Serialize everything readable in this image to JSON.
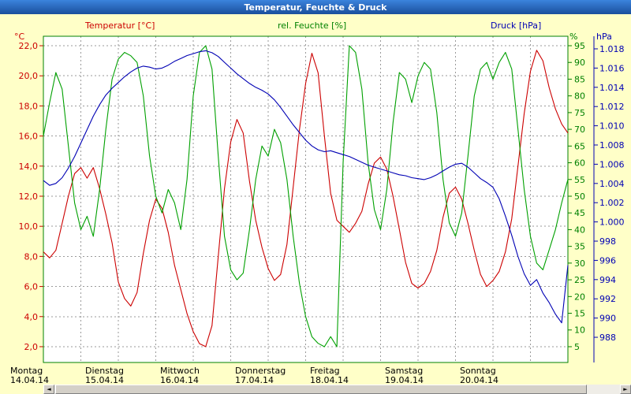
{
  "window": {
    "title": "Temperatur, Feuchte & Druck"
  },
  "scrollbar": {
    "left_glyph": "◄",
    "right_glyph": "►"
  },
  "chart_data": {
    "type": "line",
    "title": "Temperatur, Feuchte & Druck",
    "grid": "dashed",
    "x": {
      "step_hours": 2,
      "points_per_day": 12,
      "days": [
        {
          "day": "Montag",
          "date": "14.04.14"
        },
        {
          "day": "Dienstag",
          "date": "15.04.14"
        },
        {
          "day": "Mittwoch",
          "date": "16.04.14"
        },
        {
          "day": "Donnerstag",
          "date": "17.04.14"
        },
        {
          "day": "Freitag",
          "date": "18.04.14"
        },
        {
          "day": "Samstag",
          "date": "19.04.14"
        },
        {
          "day": "Sonntag",
          "date": "20.04.14"
        }
      ]
    },
    "axes": {
      "temperature": {
        "title": "Temperatur [°C]",
        "unit": "°C",
        "color": "#cc0000",
        "side": "left",
        "tick_labels": [
          "22,0",
          "20,0",
          "18,0",
          "16,0",
          "14,0",
          "12,0",
          "10,0",
          "8,0",
          "6,0",
          "4,0",
          "2,0"
        ],
        "tick_values": [
          22,
          20,
          18,
          16,
          14,
          12,
          10,
          8,
          6,
          4,
          2
        ],
        "range_top": 22.63,
        "range_bottom": 0.95
      },
      "humidity": {
        "title": "rel. Feuchte [%]",
        "unit": "%",
        "color": "#008000",
        "side": "right",
        "tick_labels": [
          "95",
          "90",
          "85",
          "80",
          "75",
          "70",
          "65",
          "60",
          "55",
          "50",
          "45",
          "40",
          "35",
          "30",
          "25",
          "20",
          "15",
          "10",
          "5"
        ],
        "tick_values": [
          95,
          90,
          85,
          80,
          75,
          70,
          65,
          60,
          55,
          50,
          45,
          40,
          35,
          30,
          25,
          20,
          15,
          10,
          5
        ],
        "range_top": 97.83,
        "range_bottom": 0.28
      },
      "pressure": {
        "title": "Druck [hPa]",
        "unit": "hPa",
        "color": "#0000b4",
        "side": "far-right",
        "tick_labels": [
          "1.018",
          "1.016",
          "1.014",
          "1.012",
          "1.010",
          "1.008",
          "1.006",
          "1.004",
          "1.002",
          "1.000",
          "998",
          "996",
          "994",
          "992",
          "990",
          "988"
        ],
        "tick_values": [
          1018,
          1016,
          1014,
          1012,
          1010,
          1008,
          1006,
          1004,
          1002,
          1000,
          998,
          996,
          994,
          992,
          990,
          988
        ],
        "range_top": 1019.31,
        "range_bottom": 985.38
      }
    },
    "series": [
      {
        "name": "Temperatur [°C]",
        "axis": "temperature",
        "color": "#cc0000",
        "values": [
          8.3,
          7.9,
          8.4,
          10.2,
          12.0,
          13.5,
          13.9,
          13.2,
          13.9,
          12.5,
          10.8,
          8.9,
          6.3,
          5.2,
          4.7,
          5.6,
          8.2,
          10.4,
          11.8,
          11.2,
          9.6,
          7.4,
          5.8,
          4.2,
          3.0,
          2.2,
          2.0,
          3.4,
          8.0,
          12.5,
          15.6,
          17.1,
          16.2,
          13.0,
          10.4,
          8.6,
          7.2,
          6.4,
          6.8,
          8.8,
          12.6,
          16.4,
          19.5,
          21.5,
          20.2,
          16.0,
          12.2,
          10.4,
          10.0,
          9.6,
          10.2,
          11.0,
          12.8,
          14.2,
          14.6,
          13.8,
          12.0,
          9.8,
          7.6,
          6.2,
          5.9,
          6.2,
          7.0,
          8.4,
          10.6,
          12.2,
          12.6,
          11.8,
          10.2,
          8.4,
          6.8,
          6.0,
          6.4,
          7.0,
          8.3,
          10.5,
          14.0,
          17.5,
          20.3,
          21.7,
          21.0,
          19.2,
          17.8,
          16.8,
          16.2
        ]
      },
      {
        "name": "rel. Feuchte [%]",
        "axis": "humidity",
        "color": "#00a000",
        "values": [
          68,
          78,
          87,
          82,
          65,
          48,
          40,
          44,
          38,
          52,
          70,
          85,
          91,
          93,
          92,
          90,
          80,
          62,
          50,
          45,
          52,
          48,
          40,
          55,
          80,
          93,
          95,
          88,
          62,
          38,
          28,
          25,
          27,
          40,
          55,
          65,
          62,
          70,
          66,
          55,
          38,
          24,
          14,
          8,
          6,
          5,
          8,
          5,
          60,
          95,
          93,
          82,
          60,
          46,
          40,
          52,
          72,
          87,
          85,
          78,
          86,
          90,
          88,
          75,
          55,
          42,
          38,
          45,
          62,
          80,
          88,
          90,
          85,
          90,
          93,
          88,
          70,
          52,
          38,
          30,
          28,
          34,
          40,
          48,
          55
        ]
      },
      {
        "name": "Druck [hPa]",
        "axis": "pressure",
        "color": "#0000b4",
        "values": [
          1004.3,
          1003.8,
          1004.0,
          1004.6,
          1005.6,
          1006.8,
          1008.2,
          1009.6,
          1011.0,
          1012.2,
          1013.2,
          1013.9,
          1014.5,
          1015.1,
          1015.6,
          1016.0,
          1016.2,
          1016.1,
          1015.9,
          1016.0,
          1016.3,
          1016.7,
          1017.0,
          1017.3,
          1017.5,
          1017.7,
          1017.8,
          1017.6,
          1017.2,
          1016.6,
          1016.0,
          1015.4,
          1014.9,
          1014.4,
          1014.0,
          1013.7,
          1013.3,
          1012.7,
          1011.9,
          1011.0,
          1010.1,
          1009.3,
          1008.5,
          1007.9,
          1007.5,
          1007.3,
          1007.4,
          1007.2,
          1007.0,
          1006.8,
          1006.5,
          1006.2,
          1005.9,
          1005.7,
          1005.5,
          1005.3,
          1005.1,
          1004.9,
          1004.8,
          1004.6,
          1004.5,
          1004.4,
          1004.6,
          1004.9,
          1005.3,
          1005.7,
          1006.0,
          1006.1,
          1005.7,
          1005.1,
          1004.5,
          1004.1,
          1003.6,
          1002.4,
          1000.6,
          998.6,
          996.4,
          994.6,
          993.4,
          994.0,
          992.6,
          991.6,
          990.4,
          989.5,
          995.5
        ]
      }
    ]
  }
}
